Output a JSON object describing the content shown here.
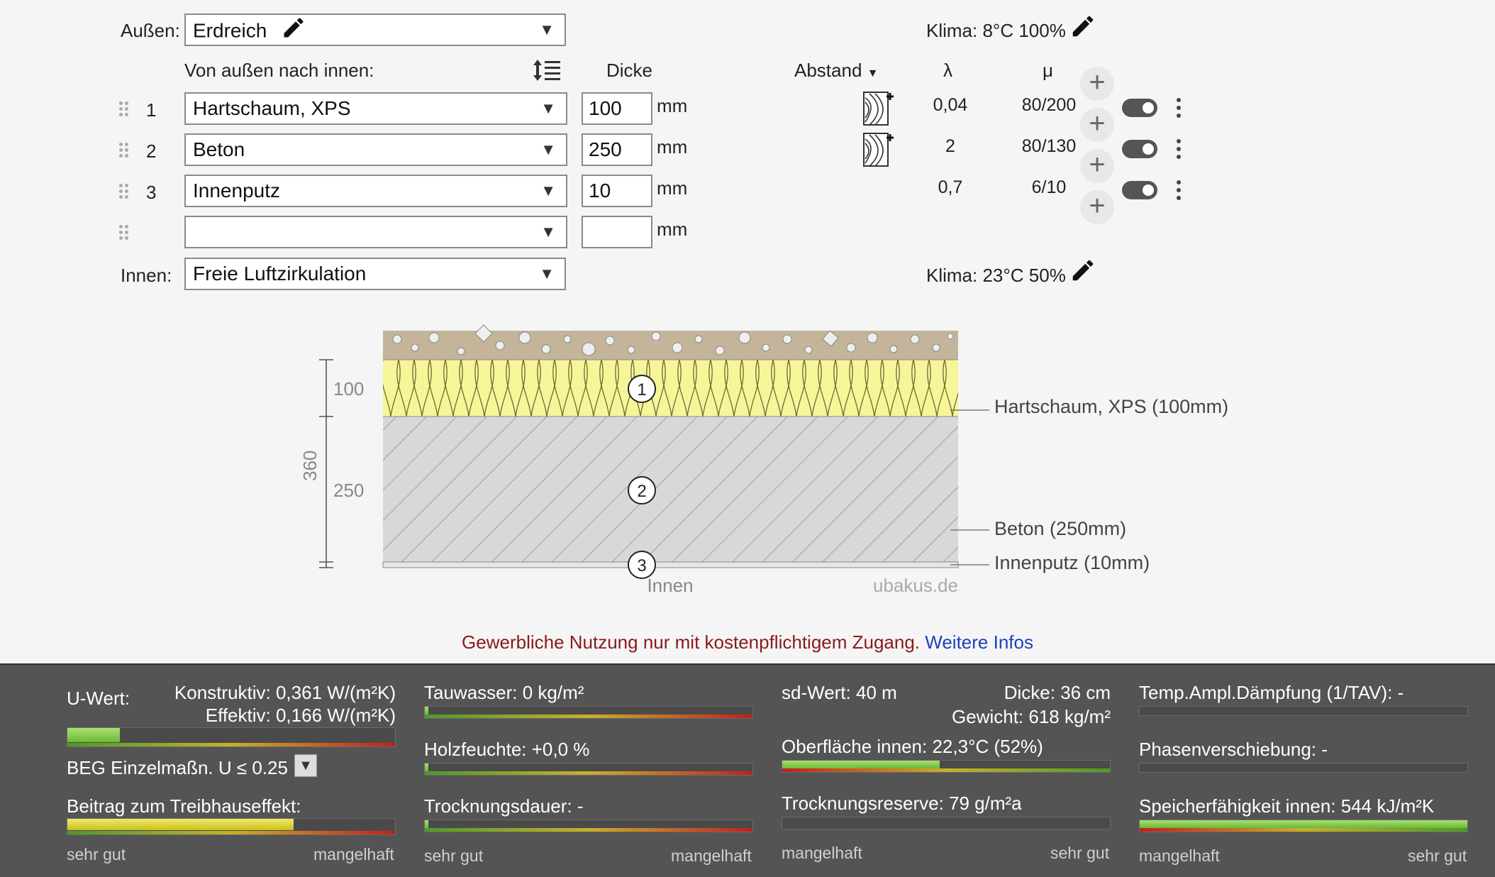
{
  "outside": {
    "label": "Außen:",
    "value": "Erdreich",
    "climate": "Klima: 8°C 100%"
  },
  "inside": {
    "label": "Innen:",
    "value": "Freie Luftzirkulation",
    "climate": "Klima: 23°C 50%"
  },
  "columns": {
    "direction": "Von außen nach innen:",
    "thickness": "Dicke",
    "spacing": "Abstand",
    "lambda": "λ",
    "mu": "μ"
  },
  "unit": "mm",
  "layers": [
    {
      "index": "1",
      "material": "Hartschaum, XPS",
      "thickness": "100",
      "lambda": "0,04",
      "mu": "80/200"
    },
    {
      "index": "2",
      "material": "Beton",
      "thickness": "250",
      "lambda": "2",
      "mu": "80/130"
    },
    {
      "index": "3",
      "material": "Innenputz",
      "thickness": "10",
      "lambda": "0,7",
      "mu": "6/10"
    },
    {
      "index": "",
      "material": "",
      "thickness": ""
    }
  ],
  "diagram": {
    "dim_total": "360",
    "dim_1": "100",
    "dim_2": "250",
    "inside_label": "Innen",
    "watermark": "ubakus.de",
    "callouts": [
      "Hartschaum, XPS (100mm)",
      "Beton (250mm)",
      "Innenputz (10mm)"
    ],
    "markers": [
      "1",
      "2",
      "3"
    ]
  },
  "notice": {
    "text": "Gewerbliche Nutzung nur mit kostenpflichtigem Zugang.",
    "link": "Weitere Infos"
  },
  "results": {
    "uwert_label": "U-Wert:",
    "konstruktiv": "Konstruktiv: 0,361 W/(m²K)",
    "effektiv": "Effektiv: 0,166 W/(m²K)",
    "uwert_level": 0.16,
    "beg": "BEG Einzelmaßn. U ≤ 0.25",
    "treibhaus_label": "Beitrag zum Treibhauseffekt:",
    "treibhaus_level": 0.69,
    "tauwasser": "Tauwasser: 0 kg/m²",
    "tauwasser_level": 0.01,
    "holzfeuchte": "Holzfeuchte: +0,0 %",
    "holzfeuchte_level": 0.01,
    "trocknungsdauer": "Trocknungsdauer: -",
    "trocknungsdauer_level": 0.01,
    "sd": "sd-Wert: 40 m",
    "dicke": "Dicke: 36 cm",
    "gewicht": "Gewicht: 618 kg/m²",
    "oberflaeche": "Oberfläche innen: 22,3°C (52%)",
    "oberflaeche_level": 0.48,
    "reserve": "Trocknungsreserve: 79 g/m²a",
    "ampl": "Temp.Ampl.Dämpfung (1/TAV): -",
    "phase": "Phasenverschiebung: -",
    "speicher": "Speicherfähigkeit innen: 544 kJ/m²K",
    "speicher_level": 1.0,
    "sehr_gut": "sehr gut",
    "mangelhaft": "mangelhaft"
  }
}
